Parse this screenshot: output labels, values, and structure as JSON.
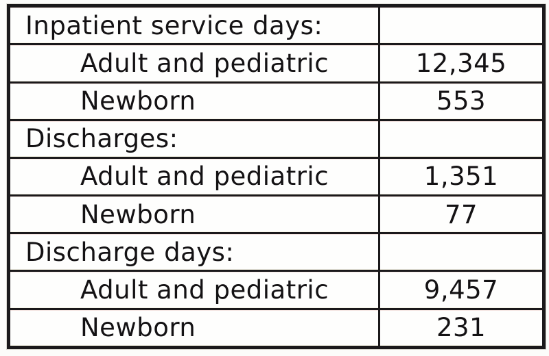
{
  "document": {
    "kind": "hospital-statistics-table",
    "colors": {
      "border": "#1b191b",
      "text": "#141214",
      "background": "#fcfcfa"
    },
    "table": {
      "columns": [
        "label",
        "value"
      ],
      "rows": [
        {
          "label": "Inpatient service days:",
          "value": "",
          "type": "section"
        },
        {
          "label": "Adult and pediatric",
          "value": "12,345",
          "type": "item"
        },
        {
          "label": "Newborn",
          "value": "553",
          "type": "item"
        },
        {
          "label": "Discharges:",
          "value": "",
          "type": "section"
        },
        {
          "label": "Adult and pediatric",
          "value": "1,351",
          "type": "item"
        },
        {
          "label": "Newborn",
          "value": "77",
          "type": "item"
        },
        {
          "label": "Discharge days:",
          "value": "",
          "type": "section"
        },
        {
          "label": "Adult and pediatric",
          "value": "9,457",
          "type": "item"
        },
        {
          "label": "Newborn",
          "value": "231",
          "type": "item"
        }
      ]
    }
  }
}
